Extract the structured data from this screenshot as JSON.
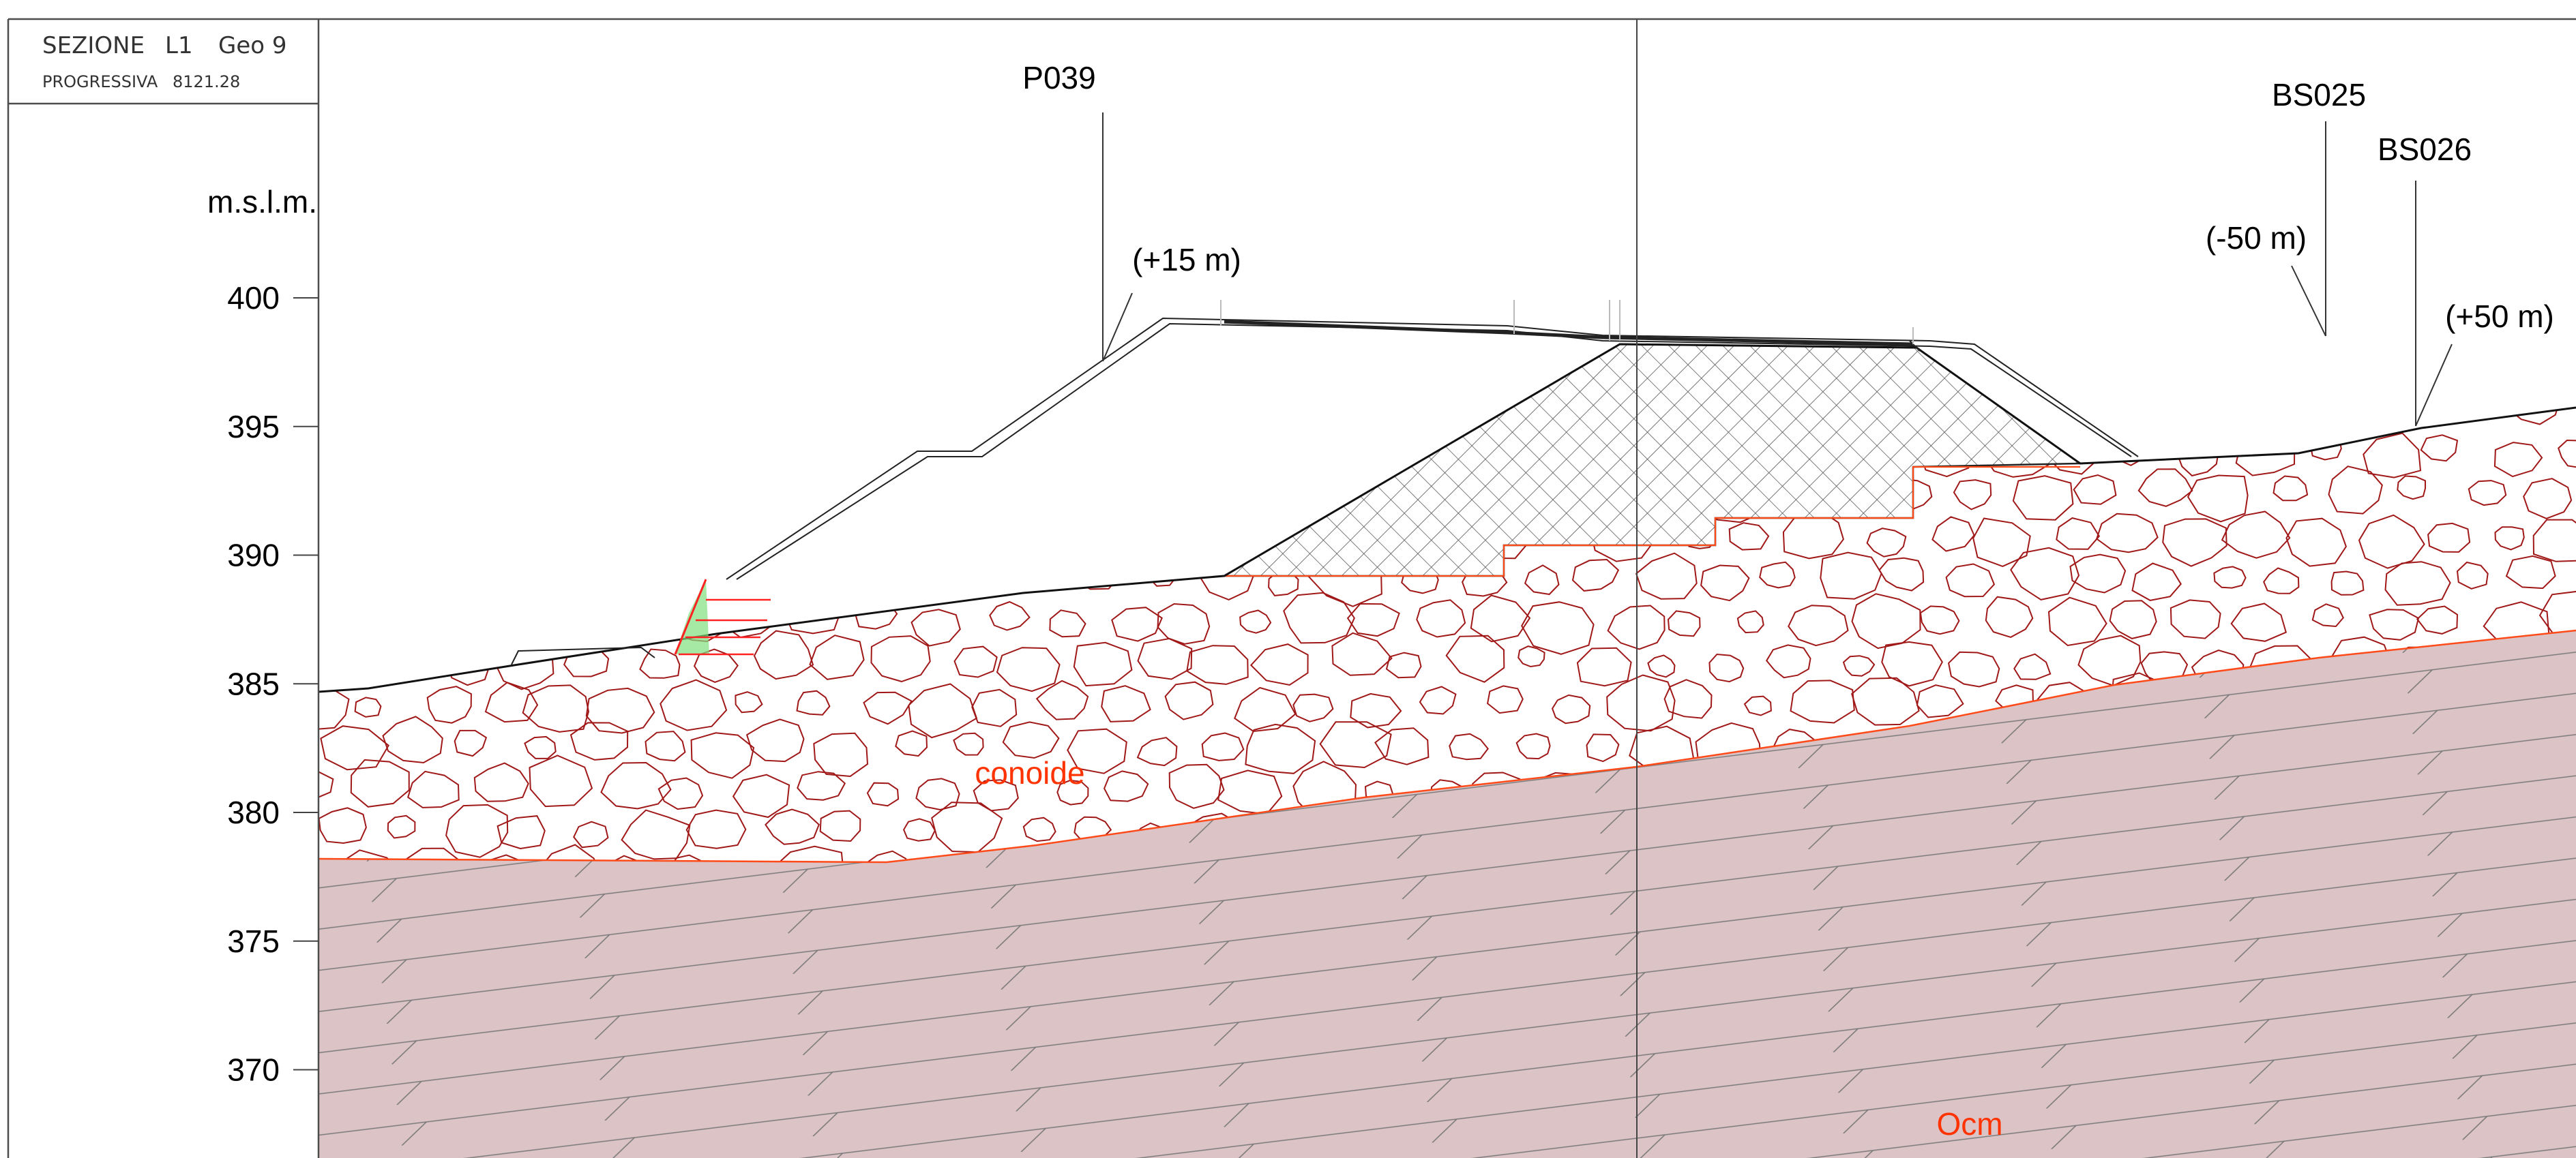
{
  "header": {
    "section_label": "SEZIONE",
    "section_code": "L1",
    "section_geo": "Geo 9",
    "progressive_label": "PROGRESSIVA",
    "progressive_value": "8121.28"
  },
  "axis": {
    "unit_label": "m.s.l.m.",
    "ticks": [
      {
        "value": 400,
        "label": "400"
      },
      {
        "value": 395,
        "label": "395"
      },
      {
        "value": 390,
        "label": "390"
      },
      {
        "value": 385,
        "label": "385"
      },
      {
        "value": 380,
        "label": "380"
      },
      {
        "value": 375,
        "label": "375"
      },
      {
        "value": 370,
        "label": "370"
      }
    ]
  },
  "boreholes": [
    {
      "id": "P039",
      "offset": "(+15 m)"
    },
    {
      "id": "BS025",
      "offset": "(-50 m)"
    },
    {
      "id": "BS026",
      "offset": "(+50 m)"
    }
  ],
  "units": {
    "upper": "conoide",
    "lower": "Ocm"
  },
  "colors": {
    "frame": "#4d4d4d",
    "boulder_stroke": "#a01818",
    "contact_line": "#ff4a1a",
    "bedrock_fill": "#dcc3c6",
    "bedrock_hatch": "#7a7a7a",
    "embankment_hatch": "#555555",
    "vegetation": "#7fe07f",
    "unit_label": "#ff3300"
  }
}
